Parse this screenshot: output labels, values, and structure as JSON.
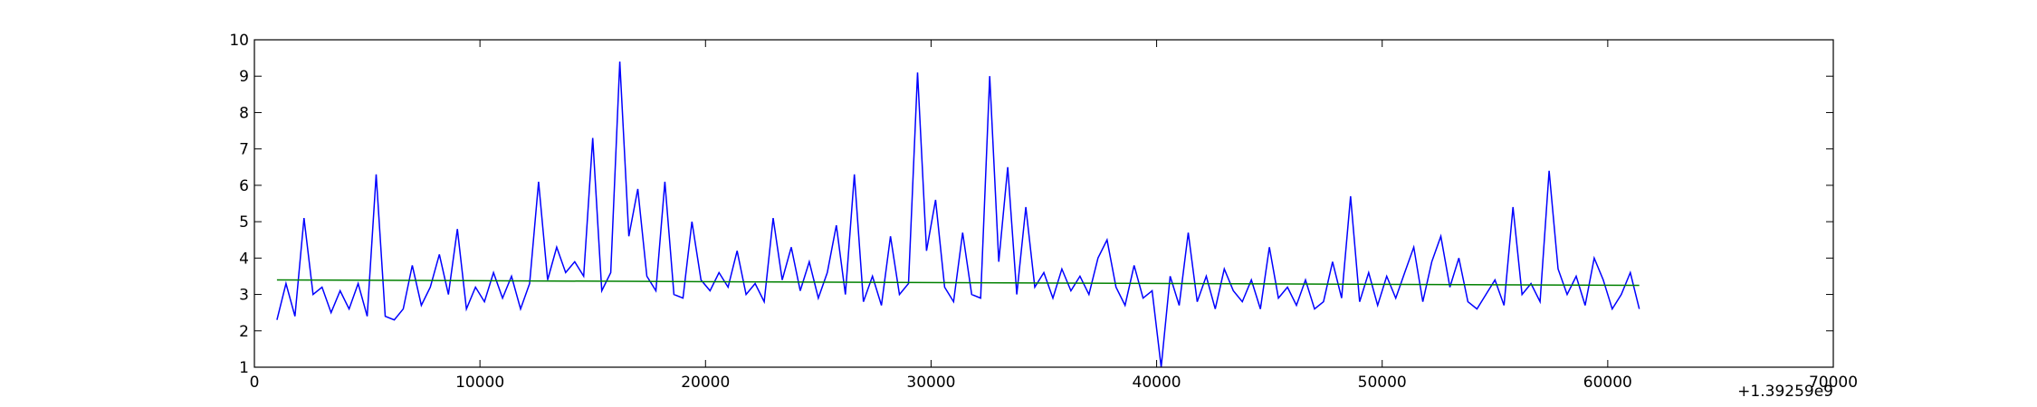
{
  "chart_data": {
    "type": "line",
    "offset_text": "+1.39259e9",
    "xlim": [
      0,
      70000
    ],
    "xticks": [
      0,
      10000,
      20000,
      30000,
      40000,
      50000,
      60000,
      70000
    ],
    "ylim": [
      1,
      10
    ],
    "yticks": [
      1,
      2,
      3,
      4,
      5,
      6,
      7,
      8,
      9,
      10
    ],
    "series": [
      {
        "color": "#0000ff",
        "x": [
          1000,
          1400,
          1800,
          2200,
          2600,
          3000,
          3400,
          3800,
          4200,
          4600,
          5000,
          5400,
          5800,
          6200,
          6600,
          7000,
          7400,
          7800,
          8200,
          8600,
          9000,
          9400,
          9800,
          10200,
          10600,
          11000,
          11400,
          11800,
          12200,
          12600,
          13000,
          13400,
          13800,
          14200,
          14600,
          15000,
          15400,
          15800,
          16200,
          16600,
          17000,
          17400,
          17800,
          18200,
          18600,
          19000,
          19400,
          19800,
          20200,
          20600,
          21000,
          21400,
          21800,
          22200,
          22600,
          23000,
          23400,
          23800,
          24200,
          24600,
          25000,
          25400,
          25800,
          26200,
          26600,
          27000,
          27400,
          27800,
          28200,
          28600,
          29000,
          29400,
          29800,
          30200,
          30600,
          31000,
          31400,
          31800,
          32200,
          32600,
          33000,
          33400,
          33800,
          34200,
          34600,
          35000,
          35400,
          35800,
          36200,
          36600,
          37000,
          37400,
          37800,
          38200,
          38600,
          39000,
          39400,
          39800,
          40200,
          40600,
          41000,
          41400,
          41800,
          42200,
          42600,
          43000,
          43400,
          43800,
          44200,
          44600,
          45000,
          45400,
          45800,
          46200,
          46600,
          47000,
          47400,
          47800,
          48200,
          48600,
          49000,
          49400,
          49800,
          50200,
          50600,
          51000,
          51400,
          51800,
          52200,
          52600,
          53000,
          53400,
          53800,
          54200,
          54600,
          55000,
          55400,
          55800,
          56200,
          56600,
          57000,
          57400,
          57800,
          58200,
          58600,
          59000,
          59400,
          59800,
          60200,
          60600,
          61000,
          61400
        ],
        "values": [
          2.3,
          3.3,
          2.4,
          5.1,
          3.0,
          3.2,
          2.5,
          3.1,
          2.6,
          3.3,
          2.4,
          6.3,
          2.4,
          2.3,
          2.6,
          3.8,
          2.7,
          3.2,
          4.1,
          3.0,
          4.8,
          2.6,
          3.2,
          2.8,
          3.6,
          2.9,
          3.5,
          2.6,
          3.3,
          6.1,
          3.4,
          4.3,
          3.6,
          3.9,
          3.5,
          7.3,
          3.1,
          3.6,
          9.4,
          4.6,
          5.9,
          3.5,
          3.1,
          6.1,
          3.0,
          2.9,
          5.0,
          3.4,
          3.1,
          3.6,
          3.2,
          4.2,
          3.0,
          3.3,
          2.8,
          5.1,
          3.4,
          4.3,
          3.1,
          3.9,
          2.9,
          3.6,
          4.9,
          3.0,
          6.3,
          2.8,
          3.5,
          2.7,
          4.6,
          3.0,
          3.3,
          9.1,
          4.2,
          5.6,
          3.2,
          2.8,
          4.7,
          3.0,
          2.9,
          9.0,
          3.9,
          6.5,
          3.0,
          5.4,
          3.2,
          3.6,
          2.9,
          3.7,
          3.1,
          3.5,
          3.0,
          4.0,
          4.5,
          3.2,
          2.7,
          3.8,
          2.9,
          3.1,
          1.0,
          3.5,
          2.7,
          4.7,
          2.8,
          3.5,
          2.6,
          3.7,
          3.1,
          2.8,
          3.4,
          2.6,
          4.3,
          2.9,
          3.2,
          2.7,
          3.4,
          2.6,
          2.8,
          3.9,
          2.9,
          5.7,
          2.8,
          3.6,
          2.7,
          3.5,
          2.9,
          3.6,
          4.3,
          2.8,
          3.9,
          4.6,
          3.2,
          4.0,
          2.8,
          2.6,
          3.0,
          3.4,
          2.7,
          5.4,
          3.0,
          3.3,
          2.8,
          6.4,
          3.7,
          3.0,
          3.5,
          2.7,
          4.0,
          3.4,
          2.6,
          3.0,
          3.6,
          2.6
        ]
      },
      {
        "color": "#008000",
        "x": [
          1000,
          61400
        ],
        "values": [
          3.4,
          3.25
        ]
      }
    ]
  }
}
